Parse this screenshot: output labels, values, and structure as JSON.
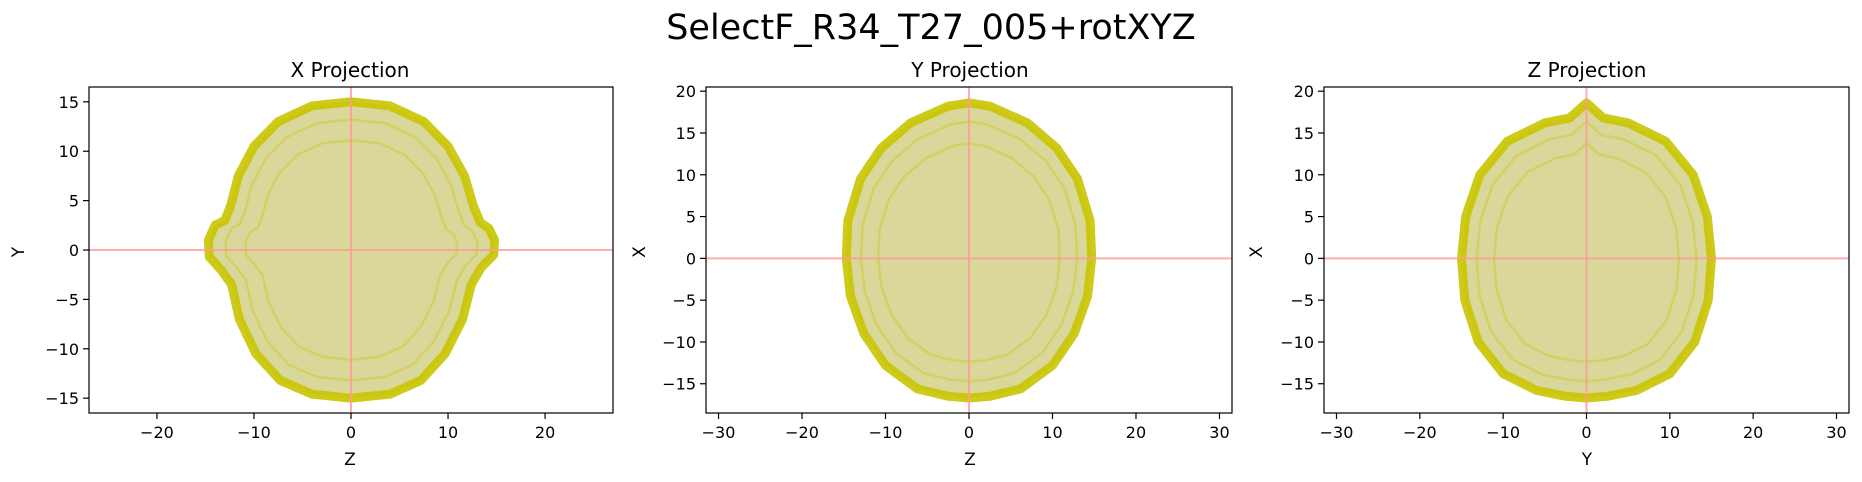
{
  "figure": {
    "title": "SelectF_R34_T27_005+rotXYZ"
  },
  "colors": {
    "fill": "#d9d89a",
    "edge": "#c9c400",
    "crosshair": "#ff9999",
    "axes": "#000000"
  },
  "chart_data": [
    {
      "type": "scatter",
      "title": "X Projection",
      "xlabel": "Z",
      "ylabel": "Y",
      "xlim": [
        -27,
        27
      ],
      "ylim": [
        -16.5,
        16.5
      ],
      "xticks": [
        -20,
        -10,
        0,
        10,
        20
      ],
      "yticks": [
        -15,
        -10,
        -5,
        0,
        5,
        10,
        15
      ],
      "crosshair": [
        0,
        0
      ],
      "grid": false,
      "outline": [
        [
          0,
          15
        ],
        [
          4,
          14.6
        ],
        [
          7.5,
          13
        ],
        [
          10,
          10.5
        ],
        [
          11.7,
          7.5
        ],
        [
          12.6,
          4.5
        ],
        [
          13.3,
          2.8
        ],
        [
          14.2,
          2.2
        ],
        [
          14.8,
          1
        ],
        [
          14.7,
          -0.5
        ],
        [
          13.4,
          -1.8
        ],
        [
          12.4,
          -3.5
        ],
        [
          11.5,
          -7
        ],
        [
          9.7,
          -10.5
        ],
        [
          7.2,
          -13.2
        ],
        [
          4,
          -14.6
        ],
        [
          0,
          -15
        ],
        [
          -4,
          -14.6
        ],
        [
          -7.3,
          -13.2
        ],
        [
          -9.8,
          -10.5
        ],
        [
          -11.5,
          -7
        ],
        [
          -12.3,
          -3.5
        ],
        [
          -13.4,
          -2
        ],
        [
          -14.6,
          -0.7
        ],
        [
          -14.7,
          1
        ],
        [
          -14,
          2.5
        ],
        [
          -13,
          3
        ],
        [
          -12.4,
          4.5
        ],
        [
          -11.6,
          7.5
        ],
        [
          -10,
          10.5
        ],
        [
          -7.5,
          13
        ],
        [
          -4,
          14.6
        ]
      ]
    },
    {
      "type": "scatter",
      "title": "Y Projection",
      "xlabel": "Z",
      "ylabel": "X",
      "xlim": [
        -31.5,
        31.5
      ],
      "ylim": [
        -18.5,
        20.5
      ],
      "xticks": [
        -30,
        -20,
        -10,
        0,
        10,
        20,
        30
      ],
      "yticks": [
        -15,
        -10,
        -5,
        0,
        5,
        10,
        15,
        20
      ],
      "crosshair": [
        0,
        0
      ],
      "grid": false,
      "outline": [
        [
          0,
          18.6
        ],
        [
          2.5,
          18.2
        ],
        [
          7,
          16.2
        ],
        [
          10.5,
          13.2
        ],
        [
          13,
          9.5
        ],
        [
          14.5,
          4.5
        ],
        [
          14.7,
          0
        ],
        [
          14.2,
          -4.5
        ],
        [
          12.6,
          -9
        ],
        [
          10,
          -12.8
        ],
        [
          6.2,
          -15.6
        ],
        [
          2.5,
          -16.5
        ],
        [
          0,
          -16.7
        ],
        [
          -2.5,
          -16.5
        ],
        [
          -6.2,
          -15.6
        ],
        [
          -10,
          -12.8
        ],
        [
          -12.6,
          -9
        ],
        [
          -14.2,
          -4.5
        ],
        [
          -14.7,
          0
        ],
        [
          -14.5,
          4.5
        ],
        [
          -13,
          9.5
        ],
        [
          -10.5,
          13.2
        ],
        [
          -7,
          16.2
        ],
        [
          -2.5,
          18.2
        ]
      ]
    },
    {
      "type": "scatter",
      "title": "Z Projection",
      "xlabel": "Y",
      "ylabel": "X",
      "xlim": [
        -31.5,
        31.5
      ],
      "ylim": [
        -18.5,
        20.5
      ],
      "xticks": [
        -30,
        -20,
        -10,
        0,
        10,
        20,
        30
      ],
      "yticks": [
        -15,
        -10,
        -5,
        0,
        5,
        10,
        15,
        20
      ],
      "crosshair": [
        0,
        0
      ],
      "grid": false,
      "outline": [
        [
          0,
          18.6
        ],
        [
          2,
          16.8
        ],
        [
          5,
          16.2
        ],
        [
          9.5,
          14
        ],
        [
          12.8,
          10
        ],
        [
          14.5,
          5
        ],
        [
          15,
          0
        ],
        [
          14.6,
          -5
        ],
        [
          13,
          -10
        ],
        [
          10,
          -13.8
        ],
        [
          6,
          -15.8
        ],
        [
          2.5,
          -16.5
        ],
        [
          0,
          -16.7
        ],
        [
          -2.5,
          -16.5
        ],
        [
          -6,
          -15.8
        ],
        [
          -10,
          -13.8
        ],
        [
          -13,
          -10
        ],
        [
          -14.6,
          -5
        ],
        [
          -15,
          0
        ],
        [
          -14.5,
          5
        ],
        [
          -12.8,
          10
        ],
        [
          -9.5,
          14
        ],
        [
          -5,
          16.2
        ],
        [
          -2,
          16.8
        ]
      ]
    }
  ]
}
